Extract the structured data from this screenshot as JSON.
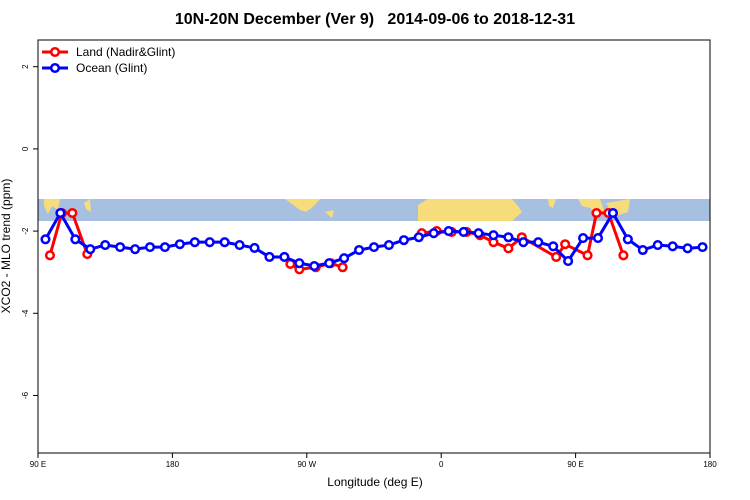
{
  "chart_data": {
    "type": "line",
    "title": "10N-20N December (Ver 9)   2014-09-06 to 2018-12-31",
    "xlabel": "Longitude (deg E)",
    "ylabel": "XCO2 - MLO trend (ppm)",
    "xlim": [
      90,
      540
    ],
    "ylim": [
      -7.4,
      2.65
    ],
    "xticks": [
      {
        "value": 90,
        "label": "90 E"
      },
      180,
      {
        "value": 270,
        "label": "90 W"
      },
      {
        "value": 360,
        "label": "0"
      },
      {
        "value": 450,
        "label": "90 E"
      },
      {
        "value": 540,
        "label": "180"
      }
    ],
    "yticks": [
      2,
      0,
      -2,
      -4,
      -6
    ],
    "legend": "top-left",
    "series": [
      {
        "name": "Land (Nadir&Glint)",
        "color": "#ff0000",
        "x": [
          98,
          106,
          113,
          123,
          190,
          259,
          265,
          276,
          286,
          294,
          320,
          347,
          357,
          367,
          377,
          386,
          395,
          405,
          414,
          437,
          443,
          458,
          464,
          472,
          482
        ],
        "values": [
          -2.59,
          -1.56,
          -1.56,
          -2.56,
          null,
          -2.8,
          -2.93,
          -2.88,
          -2.78,
          -2.88,
          null,
          -2.05,
          -2.0,
          -2.02,
          -2.02,
          -2.1,
          -2.27,
          -2.42,
          -2.15,
          -2.63,
          -2.32,
          -2.59,
          -1.56,
          -1.56,
          -2.59
        ]
      },
      {
        "name": "Ocean (Glint)",
        "color": "#0000ff",
        "x": [
          95,
          105,
          115,
          125,
          135,
          145,
          155,
          165,
          175,
          185,
          195,
          205,
          215,
          225,
          235,
          245,
          255,
          265,
          275,
          285,
          295,
          305,
          315,
          325,
          335,
          345,
          355,
          365,
          375,
          385,
          395,
          405,
          415,
          425,
          435,
          445,
          455,
          465,
          475,
          485,
          495,
          505,
          515,
          525,
          535
        ],
        "values": [
          -2.2,
          -1.56,
          -2.2,
          -2.44,
          -2.34,
          -2.39,
          -2.44,
          -2.39,
          -2.39,
          -2.32,
          -2.27,
          -2.27,
          -2.27,
          -2.34,
          -2.41,
          -2.63,
          -2.63,
          -2.78,
          -2.85,
          -2.78,
          -2.66,
          -2.46,
          -2.39,
          -2.34,
          -2.22,
          -2.15,
          -2.05,
          -2.0,
          -2.02,
          -2.05,
          -2.1,
          -2.15,
          -2.27,
          -2.27,
          -2.37,
          -2.73,
          -2.17,
          -2.17,
          -1.56,
          -2.2,
          -2.46,
          -2.34,
          -2.37,
          -2.42,
          -2.39
        ]
      }
    ]
  }
}
